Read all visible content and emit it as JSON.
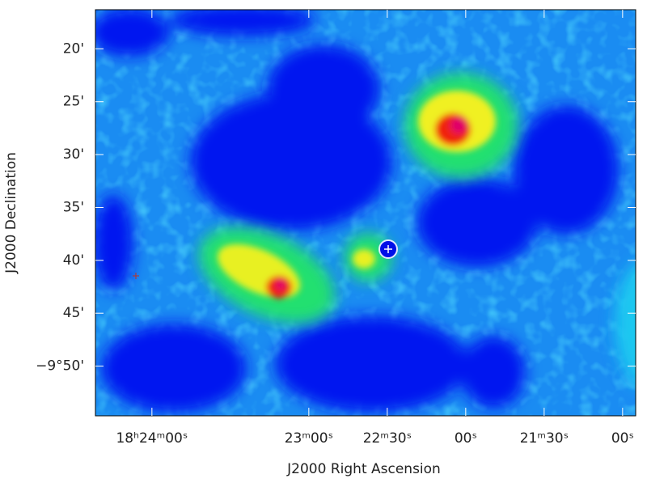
{
  "chart_data": {
    "type": "map",
    "x_label": "J2000 Right Ascension",
    "y_label": "J2000 Declination",
    "xlim": [
      66261.6,
      66055
    ],
    "xticks": [
      {
        "value": 66240,
        "label": "18ʰ24ᵐ00ˢ"
      },
      {
        "value": 66180,
        "label": "23ᵐ00ˢ"
      },
      {
        "value": 66150,
        "label": "22ᵐ30ˢ"
      },
      {
        "value": 66120,
        "label": "00ˢ"
      },
      {
        "value": 66090,
        "label": "21ᵐ30ˢ"
      },
      {
        "value": 66060,
        "label": "00ˢ"
      }
    ],
    "ylim": [
      -594.7,
      -556.3
    ],
    "yticks": [
      {
        "value": -560,
        "label": "20'"
      },
      {
        "value": -565,
        "label": "25'"
      },
      {
        "value": -570,
        "label": "30'"
      },
      {
        "value": -575,
        "label": "35'"
      },
      {
        "value": -580,
        "label": "40'"
      },
      {
        "value": -585,
        "label": "45'"
      },
      {
        "value": -590,
        "label": "−9°50'"
      }
    ]
  }
}
